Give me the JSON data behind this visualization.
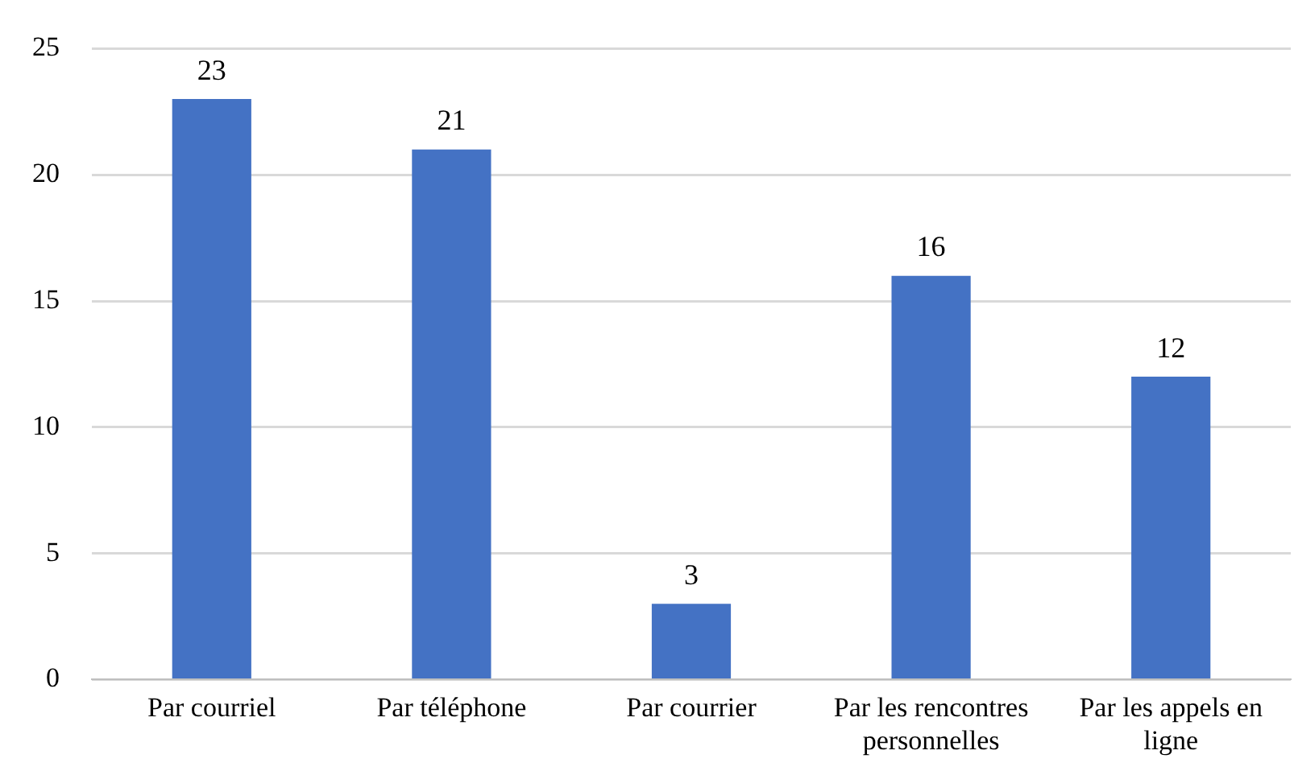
{
  "chart_data": {
    "type": "bar",
    "categories": [
      "Par courriel",
      "Par téléphone",
      "Par courrier",
      "Par les rencontres personnelles",
      "Par les appels en ligne"
    ],
    "values": [
      23,
      21,
      3,
      16,
      12
    ],
    "color": "#4472c4",
    "ylim": [
      0,
      25
    ],
    "yticks": [
      0,
      5,
      10,
      15,
      20,
      25
    ],
    "grid": "y",
    "data_labels": true,
    "legend": false
  }
}
